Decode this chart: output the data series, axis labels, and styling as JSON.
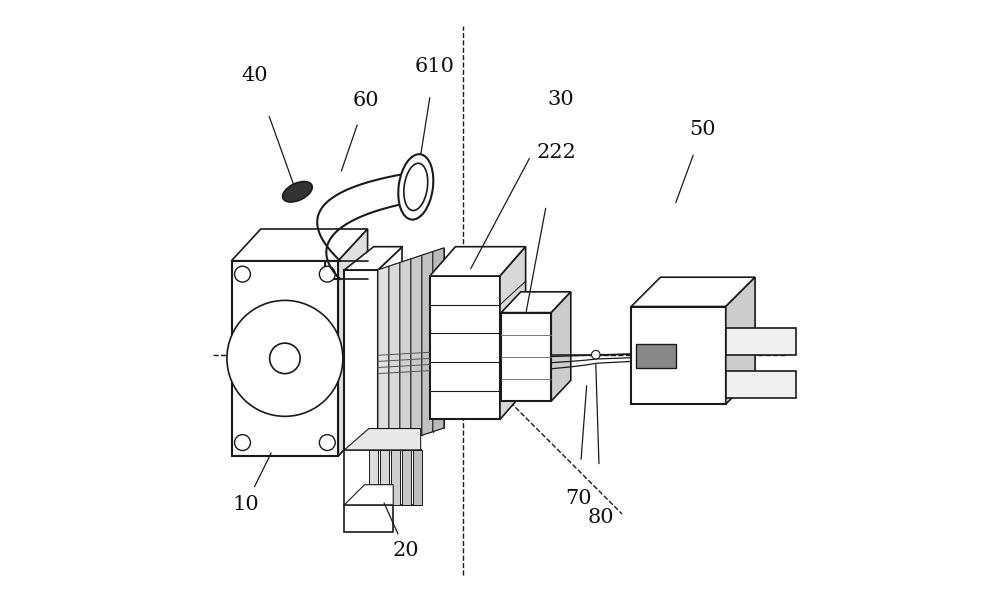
{
  "bg_color": "#ffffff",
  "line_color": "#1a1a1a",
  "fig_width": 10.0,
  "fig_height": 6.13,
  "dpi": 100
}
